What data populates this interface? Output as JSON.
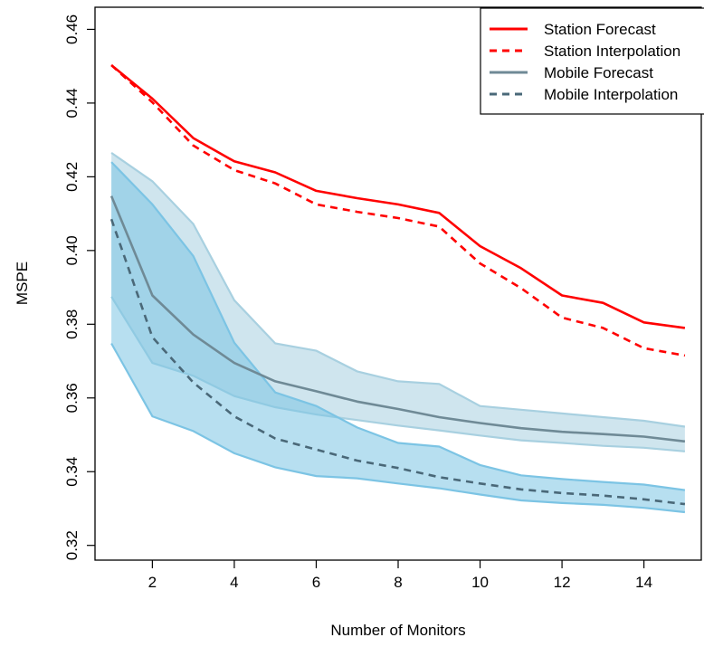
{
  "chart_data": {
    "type": "line",
    "xlabel": "Number of Monitors",
    "ylabel": "MSPE",
    "xlim": [
      0.6,
      15.4
    ],
    "ylim": [
      0.316,
      0.466
    ],
    "x_ticks": [
      2,
      4,
      6,
      8,
      10,
      12,
      14
    ],
    "x_tick_labels": [
      "2",
      "4",
      "6",
      "8",
      "10",
      "12",
      "14"
    ],
    "y_ticks": [
      0.32,
      0.34,
      0.36,
      0.38,
      0.4,
      0.42,
      0.44,
      0.46
    ],
    "y_tick_labels": [
      "0.32",
      "0.34",
      "0.36",
      "0.38",
      "0.40",
      "0.42",
      "0.44",
      "0.46"
    ],
    "legend_position": "top-right",
    "x": [
      1,
      2,
      3,
      4,
      5,
      6,
      7,
      8,
      9,
      10,
      11,
      12,
      13,
      14,
      15
    ],
    "series": [
      {
        "name": "Station Forecast",
        "color": "#ff0000",
        "style": "solid",
        "values": [
          0.4503,
          0.4412,
          0.4305,
          0.4242,
          0.4212,
          0.4162,
          0.4142,
          0.4125,
          0.4102,
          0.4012,
          0.3952,
          0.3878,
          0.3858,
          0.3805,
          0.379
        ]
      },
      {
        "name": "Station Interpolation",
        "color": "#ff0000",
        "style": "dashed",
        "values": [
          0.4503,
          0.4402,
          0.4285,
          0.4218,
          0.4182,
          0.4125,
          0.4105,
          0.4088,
          0.4065,
          0.3965,
          0.3898,
          0.3818,
          0.379,
          0.3735,
          0.3715
        ]
      },
      {
        "name": "Mobile Forecast",
        "color": "#6f8a96",
        "style": "solid",
        "values": [
          0.4148,
          0.3878,
          0.3772,
          0.3695,
          0.3645,
          0.3618,
          0.359,
          0.357,
          0.3548,
          0.3532,
          0.3518,
          0.3508,
          0.3502,
          0.3495,
          0.3482
        ]
      },
      {
        "name": "Mobile Interpolation",
        "color": "#4a6878",
        "style": "dashed",
        "values": [
          0.4085,
          0.3765,
          0.3642,
          0.355,
          0.349,
          0.346,
          0.343,
          0.341,
          0.3385,
          0.3368,
          0.3352,
          0.3342,
          0.3335,
          0.3325,
          0.3312
        ]
      }
    ],
    "bands": [
      {
        "of": "Mobile Forecast",
        "color": "#a8d0e0",
        "upper": [
          0.4265,
          0.4188,
          0.4072,
          0.3865,
          0.3748,
          0.3728,
          0.3672,
          0.3645,
          0.3638,
          0.3578,
          0.3568,
          0.3558,
          0.3548,
          0.3538,
          0.3522
        ],
        "lower": [
          0.3875,
          0.3695,
          0.366,
          0.3605,
          0.3575,
          0.3555,
          0.354,
          0.3525,
          0.3512,
          0.3498,
          0.3485,
          0.3478,
          0.347,
          0.3465,
          0.3455
        ]
      },
      {
        "of": "Mobile Interpolation",
        "color": "#7cc4e4",
        "upper": [
          0.424,
          0.4125,
          0.3985,
          0.375,
          0.3615,
          0.3578,
          0.352,
          0.3478,
          0.3468,
          0.3418,
          0.339,
          0.338,
          0.3372,
          0.3365,
          0.335
        ],
        "lower": [
          0.3748,
          0.355,
          0.351,
          0.345,
          0.3412,
          0.3388,
          0.3382,
          0.3368,
          0.3355,
          0.3338,
          0.3322,
          0.3315,
          0.331,
          0.3302,
          0.329
        ]
      }
    ]
  }
}
